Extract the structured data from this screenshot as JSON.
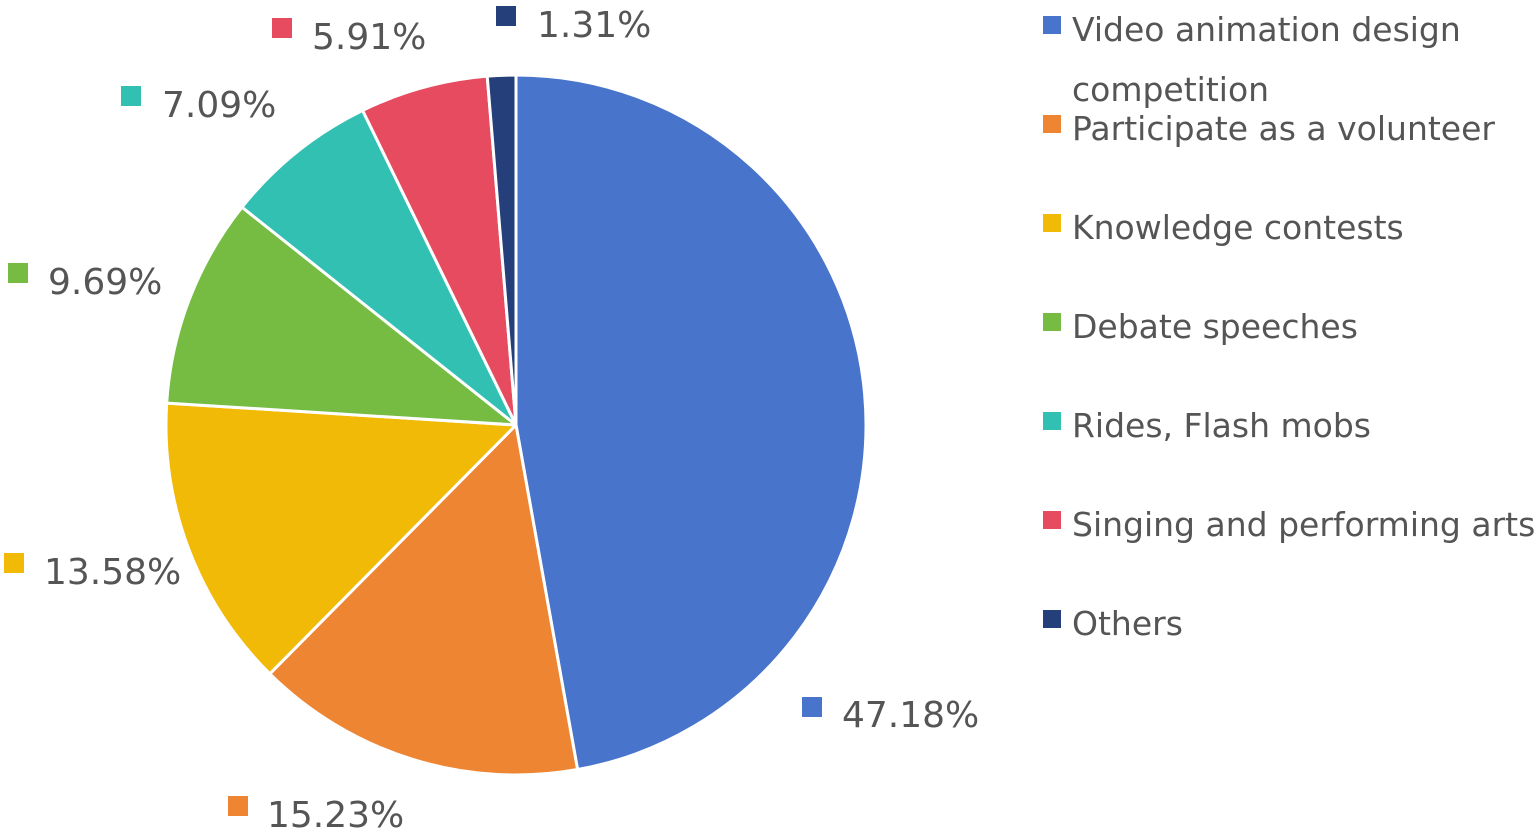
{
  "chart_data": {
    "type": "pie",
    "categories": [
      "Video animation design competition",
      "Participate as a volunteer",
      "Knowledge contests",
      "Debate speeches",
      "Rides, Flash mobs",
      "Singing and performing arts",
      "Others"
    ],
    "values": [
      47.18,
      15.23,
      13.58,
      9.69,
      7.09,
      5.91,
      1.31
    ],
    "labels": [
      "47.18%",
      "15.23%",
      "13.58%",
      "9.69%",
      "7.09%",
      "5.91%",
      "1.31%"
    ],
    "colors": [
      "#4874CB",
      "#EE8533",
      "#F1BA07",
      "#76BC43",
      "#31C0B2",
      "#E64B60",
      "#243F7A"
    ],
    "legend": {
      "position": "right",
      "items": [
        {
          "lines": [
            "Video animation design",
            "competition"
          ]
        },
        {
          "lines": [
            "Participate as a volunteer"
          ]
        },
        {
          "lines": [
            "Knowledge contests"
          ]
        },
        {
          "lines": [
            "Debate speeches"
          ]
        },
        {
          "lines": [
            "Rides, Flash mobs"
          ]
        },
        {
          "lines": [
            "Singing and performing arts"
          ]
        },
        {
          "lines": [
            "Others"
          ]
        }
      ]
    },
    "start_angle_deg": 0,
    "direction": "clockwise",
    "title": ""
  }
}
